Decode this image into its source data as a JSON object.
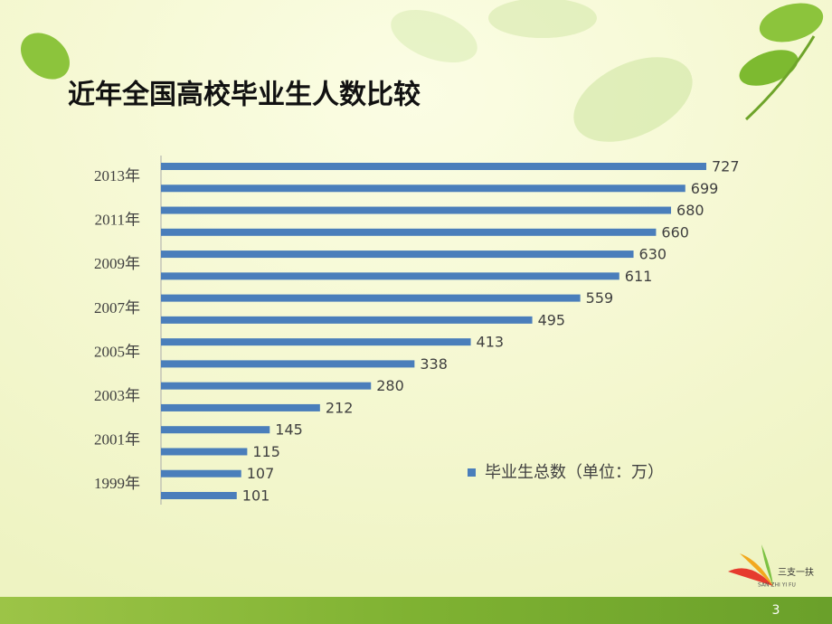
{
  "chart_data": {
    "type": "bar",
    "orientation": "horizontal",
    "title": "近年全国高校毕业生人数比较",
    "categories": [
      "1999年",
      null,
      "2001年",
      null,
      "2003年",
      null,
      "2005年",
      null,
      "2007年",
      null,
      "2009年",
      null,
      "2011年",
      null,
      "2013年",
      null
    ],
    "series": [
      {
        "name": "毕业生总数（单位：万）",
        "color": "#4a7ebb",
        "values": [
          101,
          107,
          115,
          145,
          212,
          280,
          338,
          413,
          495,
          559,
          611,
          630,
          660,
          680,
          699,
          727
        ]
      }
    ]
  },
  "slide": {
    "page_number": "3",
    "logo": {
      "text": "三支一扶",
      "subtext": "SAN ZHI YI FU"
    }
  }
}
